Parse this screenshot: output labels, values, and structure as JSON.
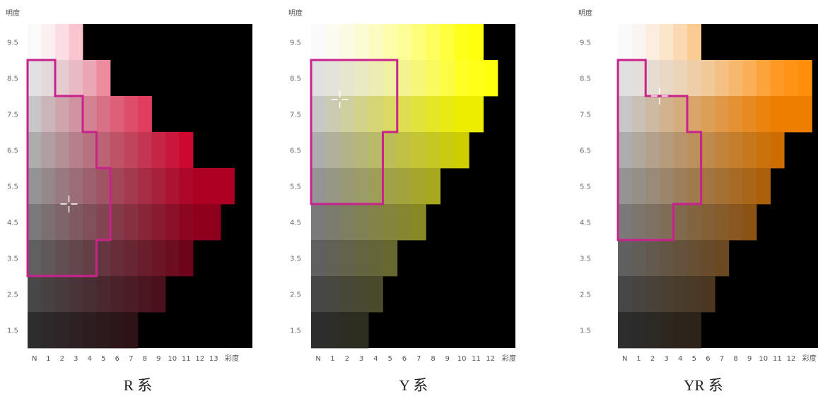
{
  "chart_data": [
    {
      "type": "heatmap",
      "title": "R 系",
      "ylabel": "明度",
      "xlabel": "彩度",
      "x_ticks": [
        "N",
        "1",
        "2",
        "3",
        "4",
        "5",
        "6",
        "7",
        "8",
        "9",
        "10",
        "11",
        "12",
        "13"
      ],
      "y_ticks": [
        "9.5",
        "8.5",
        "7.5",
        "6.5",
        "5.5",
        "4.5",
        "3.5",
        "2.5",
        "1.5"
      ],
      "max_chroma_per_value": [
        4,
        6,
        9,
        12,
        15,
        14,
        12,
        10,
        8
      ],
      "region_boundary": [
        [
          0,
          9
        ],
        [
          2,
          9
        ],
        [
          2,
          8
        ],
        [
          4,
          8
        ],
        [
          4,
          7
        ],
        [
          5,
          7
        ],
        [
          5,
          6
        ],
        [
          6,
          6
        ],
        [
          6,
          4
        ],
        [
          5,
          4
        ],
        [
          5,
          3
        ],
        [
          0,
          3
        ]
      ],
      "marker": {
        "chroma": 3,
        "value": 5
      }
    },
    {
      "type": "heatmap",
      "title": "Y 系",
      "ylabel": "明度",
      "xlabel": "彩度",
      "x_ticks": [
        "N",
        "1",
        "2",
        "3",
        "4",
        "5",
        "6",
        "7",
        "8",
        "9",
        "10",
        "11",
        "12"
      ],
      "y_ticks": [
        "9.5",
        "8.5",
        "7.5",
        "6.5",
        "5.5",
        "4.5",
        "3.5",
        "2.5",
        "1.5"
      ],
      "max_chroma_per_value": [
        12,
        13,
        12,
        11,
        9,
        8,
        6,
        5,
        4
      ],
      "region_boundary": [
        [
          0,
          9
        ],
        [
          6,
          9
        ],
        [
          6,
          7
        ],
        [
          5,
          7
        ],
        [
          5,
          5
        ],
        [
          0,
          5
        ]
      ],
      "marker": {
        "chroma": 2,
        "value": 7.9
      }
    },
    {
      "type": "heatmap",
      "title": "YR 系",
      "ylabel": "明度",
      "xlabel": "彩度",
      "x_ticks": [
        "N",
        "1",
        "2",
        "3",
        "4",
        "5",
        "6",
        "7",
        "8",
        "9",
        "10",
        "11",
        "12"
      ],
      "y_ticks": [
        "9.5",
        "8.5",
        "7.5",
        "6.5",
        "5.5",
        "4.5",
        "3.5",
        "2.5",
        "1.5"
      ],
      "max_chroma_per_value": [
        6,
        14,
        14,
        12,
        11,
        10,
        8,
        7,
        6
      ],
      "region_boundary": [
        [
          0,
          9
        ],
        [
          2,
          9
        ],
        [
          2,
          8
        ],
        [
          5,
          8
        ],
        [
          5,
          7
        ],
        [
          6,
          7
        ],
        [
          6,
          5
        ],
        [
          4,
          5
        ],
        [
          4,
          4
        ],
        [
          0,
          4
        ]
      ],
      "marker": {
        "chroma": 3,
        "value": 8
      }
    }
  ],
  "colors": {
    "hue_R": "#ff0033",
    "hue_Y": "#ffff00",
    "hue_YR": "#ff8800",
    "background": "#000000",
    "boundary": "#c8228c",
    "marker": "#ffffff"
  }
}
